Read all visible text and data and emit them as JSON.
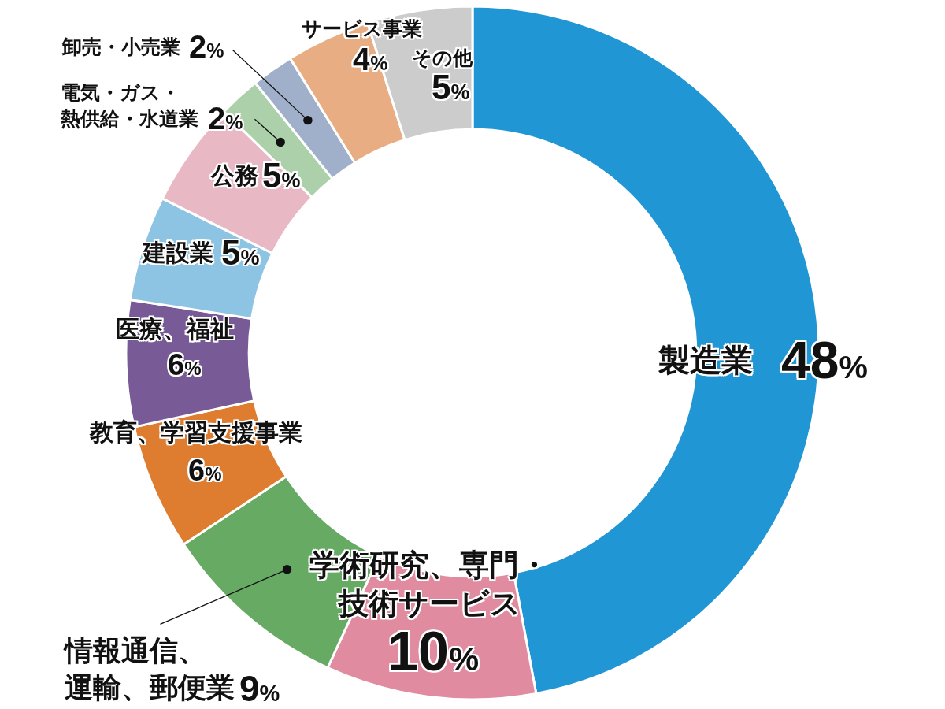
{
  "chart_data": {
    "type": "donut",
    "categories": [
      "製造業",
      "学術研究、専門・技術サービス",
      "情報通信、運輸、郵便業",
      "教育、学習支援事業",
      "医療、福祉",
      "建設業",
      "公務",
      "電気・ガス・熱供給・水道業",
      "卸売・小売業",
      "サービス事業",
      "その他"
    ],
    "values": [
      48,
      10,
      9,
      6,
      6,
      5,
      5,
      2,
      2,
      4,
      5
    ],
    "value_labels": [
      "48%",
      "10%",
      "9%",
      "6%",
      "6%",
      "5%",
      "5%",
      "2%",
      "2%",
      "4%",
      "5%"
    ],
    "colors": [
      "#2196d5",
      "#e08ba0",
      "#67aa63",
      "#de7d2f",
      "#775a96",
      "#8ec4e3",
      "#e8b8c5",
      "#abd0aa",
      "#a0afca",
      "#e8ad82",
      "#cccccc"
    ]
  }
}
